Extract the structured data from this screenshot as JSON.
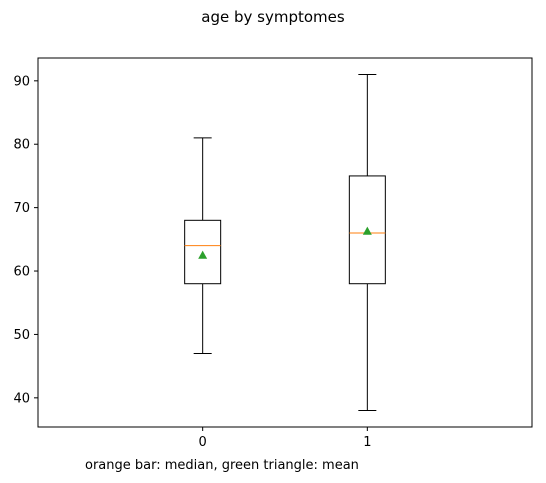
{
  "chart_data": {
    "type": "box",
    "title": "age by symptomes",
    "footnote": "orange bar: median, green triangle: mean",
    "xlabel": "",
    "ylabel": "",
    "ylim": [
      35.4,
      93.6
    ],
    "yticks": [
      40,
      50,
      60,
      70,
      80,
      90
    ],
    "categories": [
      "0",
      "1"
    ],
    "boxes": [
      {
        "category": "0",
        "whisker_low": 47,
        "q1": 58,
        "median": 64,
        "q3": 68,
        "whisker_high": 81,
        "mean": 62.5
      },
      {
        "category": "1",
        "whisker_low": 38,
        "q1": 58,
        "median": 66,
        "q3": 75,
        "whisker_high": 91,
        "mean": 66.3
      }
    ],
    "colors": {
      "box": "#000000",
      "median": "#ff7f0e",
      "mean": "#2ca02c"
    },
    "grid": false
  }
}
